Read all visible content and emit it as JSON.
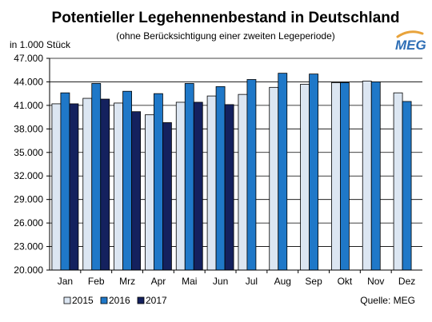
{
  "colors": {
    "series_2015": "#dce6f2",
    "series_2016": "#1f78c8",
    "series_2017": "#14215e",
    "logo": "#2f6fb6",
    "logo_accent": "#e8a33b"
  },
  "header": {
    "title": "Potentieller Legehennenbestand in Deutschland",
    "subtitle": "(ohne Berücksichtigung einer zweiten Legeperiode)",
    "unit": "in 1.000 Stück"
  },
  "logo": {
    "text": "MEG",
    "icon": "meg-logo"
  },
  "footer": {
    "source": "Quelle: MEG"
  },
  "chart_data": {
    "type": "bar",
    "title": "Potentieller Legehennenbestand in Deutschland",
    "subtitle": "(ohne Berücksichtigung einer zweiten Legeperiode)",
    "ylabel": "in 1.000 Stück",
    "xlabel": "",
    "ylim": [
      20000,
      47000
    ],
    "y_ticks": [
      20000,
      23000,
      26000,
      29000,
      32000,
      35000,
      38000,
      41000,
      44000,
      47000
    ],
    "y_tick_labels": [
      "20.000",
      "23.000",
      "26.000",
      "29.000",
      "32.000",
      "35.000",
      "38.000",
      "41.000",
      "44.000",
      "47.000"
    ],
    "grid": true,
    "legend_position": "bottom-left",
    "categories": [
      "Jan",
      "Feb",
      "Mrz",
      "Apr",
      "Mai",
      "Jun",
      "Jul",
      "Aug",
      "Sep",
      "Okt",
      "Nov",
      "Dez"
    ],
    "series": [
      {
        "name": "2015",
        "values": [
          41200,
          41900,
          41300,
          39800,
          41400,
          42200,
          42400,
          43300,
          43700,
          43900,
          44100,
          42600
        ]
      },
      {
        "name": "2016",
        "values": [
          42600,
          43800,
          42800,
          42500,
          43800,
          43400,
          44300,
          45100,
          45000,
          43900,
          44000,
          41500
        ]
      },
      {
        "name": "2017",
        "values": [
          41200,
          41800,
          40200,
          38800,
          41400,
          41100,
          null,
          null,
          null,
          null,
          null,
          null
        ]
      }
    ]
  }
}
